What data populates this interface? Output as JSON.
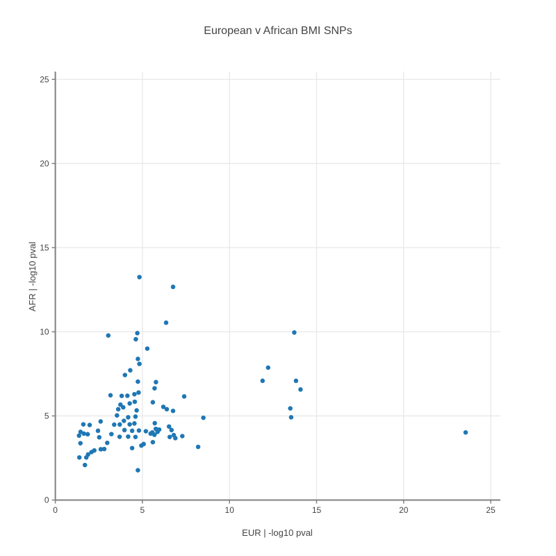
{
  "chart_data": {
    "type": "scatter",
    "title": "European v African BMI SNPs",
    "xlabel": "EUR | -log10 pval",
    "ylabel": "AFR | -log10 pval",
    "xlim": [
      0,
      25.5
    ],
    "ylim": [
      0,
      25.5
    ],
    "xticks": [
      0,
      5,
      10,
      15,
      20,
      25
    ],
    "yticks": [
      0,
      5,
      10,
      15,
      20,
      25
    ],
    "grid": true,
    "legend": "none",
    "marker_color": "#1f77b4",
    "points": [
      [
        4.83,
        13.25
      ],
      [
        6.76,
        12.67
      ],
      [
        6.36,
        10.54
      ],
      [
        4.71,
        9.92
      ],
      [
        3.04,
        9.78
      ],
      [
        4.62,
        9.56
      ],
      [
        5.28,
        9.0
      ],
      [
        4.74,
        8.39
      ],
      [
        4.83,
        8.09
      ],
      [
        4.3,
        7.71
      ],
      [
        4.0,
        7.43
      ],
      [
        4.74,
        7.04
      ],
      [
        5.78,
        7.01
      ],
      [
        5.7,
        6.64
      ],
      [
        13.72,
        9.96
      ],
      [
        12.22,
        7.87
      ],
      [
        11.9,
        7.09
      ],
      [
        13.82,
        7.09
      ],
      [
        14.08,
        6.57
      ],
      [
        13.49,
        5.45
      ],
      [
        13.54,
        4.92
      ],
      [
        23.56,
        4.02
      ],
      [
        3.17,
        6.23
      ],
      [
        3.81,
        6.19
      ],
      [
        4.14,
        6.2
      ],
      [
        4.54,
        6.29
      ],
      [
        4.78,
        6.39
      ],
      [
        4.56,
        5.84
      ],
      [
        4.27,
        5.74
      ],
      [
        3.74,
        5.67
      ],
      [
        3.9,
        5.51
      ],
      [
        5.6,
        5.81
      ],
      [
        6.2,
        5.54
      ],
      [
        6.4,
        5.4
      ],
      [
        7.4,
        6.16
      ],
      [
        3.61,
        5.4
      ],
      [
        3.54,
        5.03
      ],
      [
        4.67,
        5.33
      ],
      [
        6.76,
        5.3
      ],
      [
        8.5,
        4.89
      ],
      [
        2.6,
        4.67
      ],
      [
        4.6,
        4.96
      ],
      [
        4.18,
        4.92
      ],
      [
        3.94,
        4.71
      ],
      [
        1.61,
        4.5
      ],
      [
        1.97,
        4.46
      ],
      [
        3.38,
        4.48
      ],
      [
        3.7,
        4.49
      ],
      [
        4.54,
        4.55
      ],
      [
        5.71,
        4.57
      ],
      [
        4.27,
        4.5
      ],
      [
        1.45,
        4.05
      ],
      [
        1.64,
        3.95
      ],
      [
        1.36,
        3.83
      ],
      [
        1.86,
        3.91
      ],
      [
        2.45,
        4.12
      ],
      [
        3.97,
        4.16
      ],
      [
        4.41,
        4.12
      ],
      [
        4.8,
        4.13
      ],
      [
        5.2,
        4.09
      ],
      [
        5.77,
        4.23
      ],
      [
        5.96,
        4.19
      ],
      [
        6.53,
        4.37
      ],
      [
        6.67,
        4.16
      ],
      [
        5.47,
        3.95
      ],
      [
        5.57,
        4.02
      ],
      [
        5.69,
        3.88
      ],
      [
        5.87,
        4.05
      ],
      [
        6.8,
        3.86
      ],
      [
        6.57,
        3.75
      ],
      [
        6.89,
        3.68
      ],
      [
        7.29,
        3.8
      ],
      [
        4.18,
        3.77
      ],
      [
        4.6,
        3.75
      ],
      [
        2.52,
        3.73
      ],
      [
        3.22,
        3.92
      ],
      [
        3.69,
        3.76
      ],
      [
        1.44,
        3.38
      ],
      [
        2.98,
        3.4
      ],
      [
        5.6,
        3.44
      ],
      [
        4.94,
        3.24
      ],
      [
        5.07,
        3.33
      ],
      [
        4.41,
        3.09
      ],
      [
        8.2,
        3.16
      ],
      [
        1.88,
        2.71
      ],
      [
        2.08,
        2.85
      ],
      [
        2.24,
        2.95
      ],
      [
        2.61,
        3.02
      ],
      [
        2.81,
        3.03
      ],
      [
        1.38,
        2.53
      ],
      [
        1.78,
        2.53
      ],
      [
        1.7,
        2.08
      ],
      [
        4.74,
        1.77
      ]
    ]
  },
  "colors": {
    "marker": "#1f77b4",
    "grid": "#e8e8e8",
    "axis_line": "#808080",
    "text": "#444444",
    "background": "#ffffff"
  }
}
